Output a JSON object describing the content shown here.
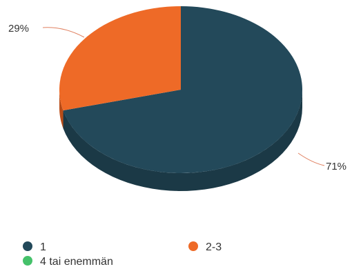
{
  "chart_data": {
    "type": "pie",
    "title": "",
    "categories": [
      "1",
      "2-3",
      "4 tai enemmän"
    ],
    "series": [
      {
        "values": [
          71,
          29,
          0
        ]
      }
    ],
    "slice_labels": [
      "71%",
      "29%",
      ""
    ],
    "colors": [
      "#23495a",
      "#ee6a27",
      "#45c16a"
    ],
    "side_colors": [
      "#1b3946",
      "#b94c17",
      "#339950"
    ],
    "legend": {
      "placement": "bottom"
    },
    "style": "3d"
  }
}
